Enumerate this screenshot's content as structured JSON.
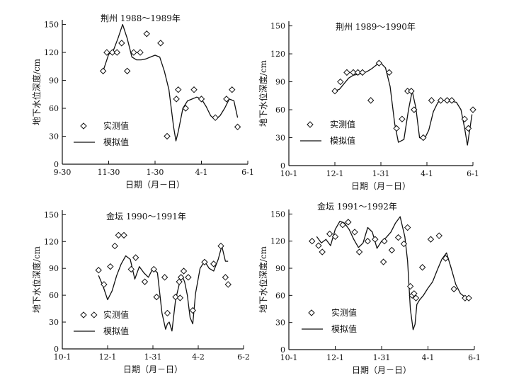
{
  "chart_data": [
    {
      "type": "line",
      "title": "荆州 1988～1989年",
      "xlabel": "日期（月－日）",
      "ylabel": "地下水位深度/cm",
      "x_ticks": [
        "9-30",
        "11-30",
        "1-30",
        "4-1",
        "6-1"
      ],
      "y_ticks": [
        "0",
        "30",
        "60",
        "90",
        "120",
        "150"
      ],
      "ylim": [
        0,
        155
      ],
      "legend": {
        "observed": "实测值",
        "simulated": "模拟值"
      },
      "observed": {
        "x": [
          0.88,
          0.96,
          1.08,
          1.18,
          1.28,
          1.4,
          1.54,
          1.68,
          1.82,
          2.12,
          2.26,
          2.46,
          2.5,
          2.66,
          2.84,
          3.0,
          3.3,
          3.54,
          3.66,
          3.78
        ],
        "y": [
          100,
          120,
          120,
          120,
          130,
          100,
          120,
          120,
          140,
          130,
          30,
          70,
          80,
          60,
          80,
          70,
          50,
          70,
          80,
          40
        ]
      },
      "simulated": {
        "x": [
          0.88,
          1.0,
          1.1,
          1.2,
          1.3,
          1.4,
          1.5,
          1.6,
          1.7,
          1.8,
          1.9,
          2.0,
          2.1,
          2.2,
          2.3,
          2.4,
          2.45,
          2.5,
          2.6,
          2.7,
          2.8,
          2.9,
          3.0,
          3.1,
          3.2,
          3.3,
          3.4,
          3.5,
          3.6,
          3.7,
          3.78
        ],
        "y": [
          100,
          118,
          122,
          135,
          150,
          135,
          115,
          112,
          112,
          113,
          115,
          117,
          115,
          100,
          80,
          40,
          25,
          35,
          60,
          68,
          70,
          72,
          70,
          62,
          52,
          48,
          52,
          60,
          70,
          68,
          50
        ]
      }
    },
    {
      "type": "line",
      "title": "荆州 1989～1990年",
      "xlabel": "日期（月－日）",
      "ylabel": "地下水位深度/cm",
      "x_ticks": [
        "10-1",
        "12-1",
        "1-31",
        "4-1",
        "6-1"
      ],
      "y_ticks": [
        "0",
        "30",
        "60",
        "90",
        "120",
        "150"
      ],
      "ylim": [
        0,
        155
      ],
      "legend": {
        "observed": "实测值",
        "simulated": "模拟值"
      },
      "observed": {
        "x": [
          1.0,
          1.12,
          1.26,
          1.4,
          1.5,
          1.6,
          1.78,
          1.96,
          2.18,
          2.34,
          2.46,
          2.58,
          2.66,
          2.72,
          2.92,
          3.1,
          3.3,
          3.44,
          3.54,
          3.82,
          3.9,
          4.0
        ],
        "y": [
          80,
          90,
          100,
          100,
          100,
          100,
          70,
          110,
          100,
          40,
          50,
          80,
          80,
          60,
          30,
          70,
          70,
          70,
          70,
          50,
          40,
          60
        ]
      },
      "simulated": {
        "x": [
          1.0,
          1.1,
          1.2,
          1.3,
          1.4,
          1.5,
          1.6,
          1.7,
          1.8,
          1.9,
          2.0,
          2.1,
          2.2,
          2.3,
          2.38,
          2.5,
          2.6,
          2.68,
          2.76,
          2.84,
          2.94,
          3.04,
          3.14,
          3.24,
          3.34,
          3.44,
          3.54,
          3.64,
          3.74,
          3.82,
          3.88,
          3.92,
          3.98
        ],
        "y": [
          80,
          82,
          88,
          94,
          97,
          98,
          99,
          101,
          104,
          108,
          110,
          105,
          85,
          45,
          25,
          28,
          60,
          80,
          62,
          30,
          28,
          38,
          58,
          68,
          70,
          70,
          69,
          68,
          60,
          40,
          22,
          35,
          55
        ]
      }
    },
    {
      "type": "line",
      "title": "金坛 1990～1991年",
      "xlabel": "日期（月－日）",
      "ylabel": "地下水位深度/cm",
      "x_ticks": [
        "10-1",
        "12-1",
        "1-31",
        "4-2",
        "6-2"
      ],
      "y_ticks": [
        "0",
        "30",
        "60",
        "90",
        "120",
        "150"
      ],
      "ylim": [
        0,
        155
      ],
      "legend": {
        "observed": "实测值",
        "simulated": "模拟值"
      },
      "observed": {
        "x": [
          0.7,
          0.8,
          0.92,
          1.06,
          1.16,
          1.24,
          1.36,
          1.52,
          1.62,
          1.82,
          2.02,
          2.08,
          2.26,
          2.32,
          2.5,
          2.58,
          2.6,
          2.62,
          2.68,
          2.78,
          2.88,
          3.14,
          3.34,
          3.5,
          3.6,
          3.66
        ],
        "y": [
          38,
          88,
          72,
          92,
          115,
          127,
          127,
          89,
          102,
          75,
          89,
          58,
          80,
          40,
          58,
          75,
          57,
          80,
          87,
          80,
          43,
          97,
          95,
          115,
          80,
          72
        ]
      },
      "simulated": {
        "x": [
          0.8,
          0.9,
          1.0,
          1.1,
          1.2,
          1.3,
          1.4,
          1.5,
          1.6,
          1.7,
          1.8,
          1.9,
          2.0,
          2.1,
          2.2,
          2.28,
          2.32,
          2.36,
          2.42,
          2.5,
          2.58,
          2.64,
          2.7,
          2.76,
          2.82,
          2.88,
          2.94,
          3.04,
          3.14,
          3.24,
          3.34,
          3.44,
          3.52,
          3.6,
          3.66
        ],
        "y": [
          82,
          70,
          55,
          65,
          82,
          95,
          104,
          100,
          78,
          92,
          85,
          80,
          90,
          85,
          40,
          22,
          28,
          30,
          20,
          55,
          72,
          82,
          75,
          60,
          35,
          28,
          62,
          90,
          98,
          90,
          87,
          100,
          115,
          98,
          98
        ]
      }
    },
    {
      "type": "line",
      "title": "金坛 1991～1992年",
      "xlabel": "日期（月－日）",
      "ylabel": "地下水位深度/cm",
      "x_ticks": [
        "10-1",
        "12-1",
        "1-31",
        "4-1",
        "6-1"
      ],
      "y_ticks": [
        "0",
        "30",
        "60",
        "90",
        "120",
        "150"
      ],
      "ylim": [
        0,
        155
      ],
      "legend": {
        "observed": "实测值",
        "simulated": "模拟值"
      },
      "observed": {
        "x": [
          0.5,
          0.64,
          0.72,
          0.88,
          1.0,
          1.16,
          1.28,
          1.42,
          1.52,
          1.7,
          1.86,
          2.04,
          2.06,
          2.22,
          2.36,
          2.48,
          2.56,
          2.62,
          2.66,
          2.7,
          2.74,
          2.88,
          3.06,
          3.24,
          3.38,
          3.56,
          3.8,
          3.88
        ],
        "y": [
          120,
          115,
          108,
          128,
          125,
          138,
          141,
          130,
          108,
          120,
          122,
          97,
          120,
          110,
          124,
          117,
          135,
          70,
          60,
          62,
          57,
          91,
          122,
          126,
          101,
          67,
          57,
          57
        ]
      },
      "simulated": {
        "x": [
          0.6,
          0.7,
          0.8,
          0.9,
          1.0,
          1.1,
          1.2,
          1.3,
          1.4,
          1.5,
          1.6,
          1.7,
          1.8,
          1.9,
          2.0,
          2.1,
          2.2,
          2.3,
          2.4,
          2.5,
          2.56,
          2.62,
          2.68,
          2.72,
          2.76,
          2.82,
          2.9,
          3.0,
          3.1,
          3.2,
          3.3,
          3.4,
          3.5,
          3.6,
          3.7,
          3.8
        ],
        "y": [
          125,
          118,
          122,
          115,
          133,
          142,
          140,
          133,
          122,
          113,
          118,
          135,
          130,
          112,
          120,
          124,
          130,
          140,
          147,
          125,
          98,
          45,
          22,
          28,
          50,
          55,
          60,
          68,
          75,
          88,
          100,
          107,
          90,
          72,
          62,
          58
        ]
      }
    }
  ]
}
